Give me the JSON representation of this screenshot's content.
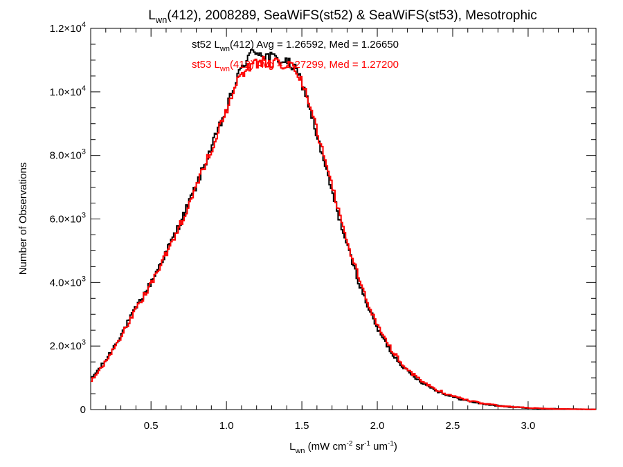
{
  "chart_data": {
    "type": "line",
    "title": {
      "main": "L",
      "sub": "wn",
      "rest": "(412), 2008289, SeaWiFS(st52) & SeaWiFS(st53), Mesotrophic"
    },
    "xlabel": {
      "main": "L",
      "sub": "wn",
      "part1": " (mW cm",
      "sup1": "-2",
      "part2": " sr",
      "sup2": "-1",
      "part3": " um",
      "sup3": "-1",
      "part4": ")"
    },
    "ylabel": "Number of Observations",
    "xlim": [
      0.1,
      3.45
    ],
    "ylim": [
      0,
      12000
    ],
    "x_ticks": [
      {
        "value": 0.5,
        "label": "0.5"
      },
      {
        "value": 1.0,
        "label": "1.0"
      },
      {
        "value": 1.5,
        "label": "1.5"
      },
      {
        "value": 2.0,
        "label": "2.0"
      },
      {
        "value": 2.5,
        "label": "2.5"
      },
      {
        "value": 3.0,
        "label": "3.0"
      }
    ],
    "y_ticks": [
      {
        "value": 0,
        "mant": "0",
        "exp": ""
      },
      {
        "value": 2000,
        "mant": "2.0×10",
        "exp": "3"
      },
      {
        "value": 4000,
        "mant": "4.0×10",
        "exp": "3"
      },
      {
        "value": 6000,
        "mant": "6.0×10",
        "exp": "3"
      },
      {
        "value": 8000,
        "mant": "8.0×10",
        "exp": "3"
      },
      {
        "value": 10000,
        "mant": "1.0×10",
        "exp": "4"
      },
      {
        "value": 12000,
        "mant": "1.2×10",
        "exp": "4"
      }
    ],
    "bin_width": 0.01,
    "series": [
      {
        "name": "st52",
        "color": "#000000",
        "annotation": {
          "pre": "st52 L",
          "sub": "wn",
          "post": "(412) Avg = 1.26592, Med = 1.26650"
        },
        "x": [
          0.1,
          0.2,
          0.3,
          0.4,
          0.5,
          0.6,
          0.7,
          0.8,
          0.9,
          1.0,
          1.05,
          1.1,
          1.15,
          1.2,
          1.25,
          1.3,
          1.35,
          1.4,
          1.45,
          1.5,
          1.55,
          1.6,
          1.7,
          1.8,
          1.9,
          2.0,
          2.1,
          2.2,
          2.3,
          2.4,
          2.5,
          2.6,
          2.7,
          2.8,
          2.9,
          3.0,
          3.1,
          3.2,
          3.3,
          3.45
        ],
        "y": [
          950,
          1550,
          2350,
          3200,
          4000,
          4950,
          5950,
          7050,
          8250,
          9450,
          10150,
          10750,
          11150,
          11300,
          11150,
          11100,
          11000,
          10950,
          10750,
          10300,
          9550,
          8600,
          6850,
          5150,
          3700,
          2550,
          1750,
          1200,
          850,
          580,
          400,
          270,
          180,
          120,
          80,
          50,
          30,
          20,
          12,
          6
        ]
      },
      {
        "name": "st53",
        "color": "#ff0000",
        "annotation": {
          "pre": "st53 L",
          "sub": "wn",
          "post": "(412) Avg = 1.27299, Med = 1.27200"
        },
        "x": [
          0.1,
          0.2,
          0.3,
          0.4,
          0.5,
          0.6,
          0.7,
          0.8,
          0.9,
          1.0,
          1.05,
          1.1,
          1.15,
          1.2,
          1.25,
          1.3,
          1.35,
          1.4,
          1.45,
          1.5,
          1.55,
          1.6,
          1.7,
          1.8,
          1.9,
          2.0,
          2.1,
          2.2,
          2.3,
          2.4,
          2.5,
          2.6,
          2.7,
          2.8,
          2.9,
          3.0,
          3.1,
          3.2,
          3.3,
          3.45
        ],
        "y": [
          900,
          1500,
          2300,
          3150,
          3950,
          4900,
          5900,
          7000,
          8200,
          9400,
          10050,
          10550,
          10800,
          10900,
          10950,
          10900,
          10900,
          10850,
          10700,
          10350,
          9700,
          8800,
          7050,
          5300,
          3800,
          2650,
          1850,
          1250,
          880,
          610,
          420,
          290,
          190,
          125,
          85,
          55,
          32,
          20,
          12,
          6
        ]
      }
    ]
  }
}
